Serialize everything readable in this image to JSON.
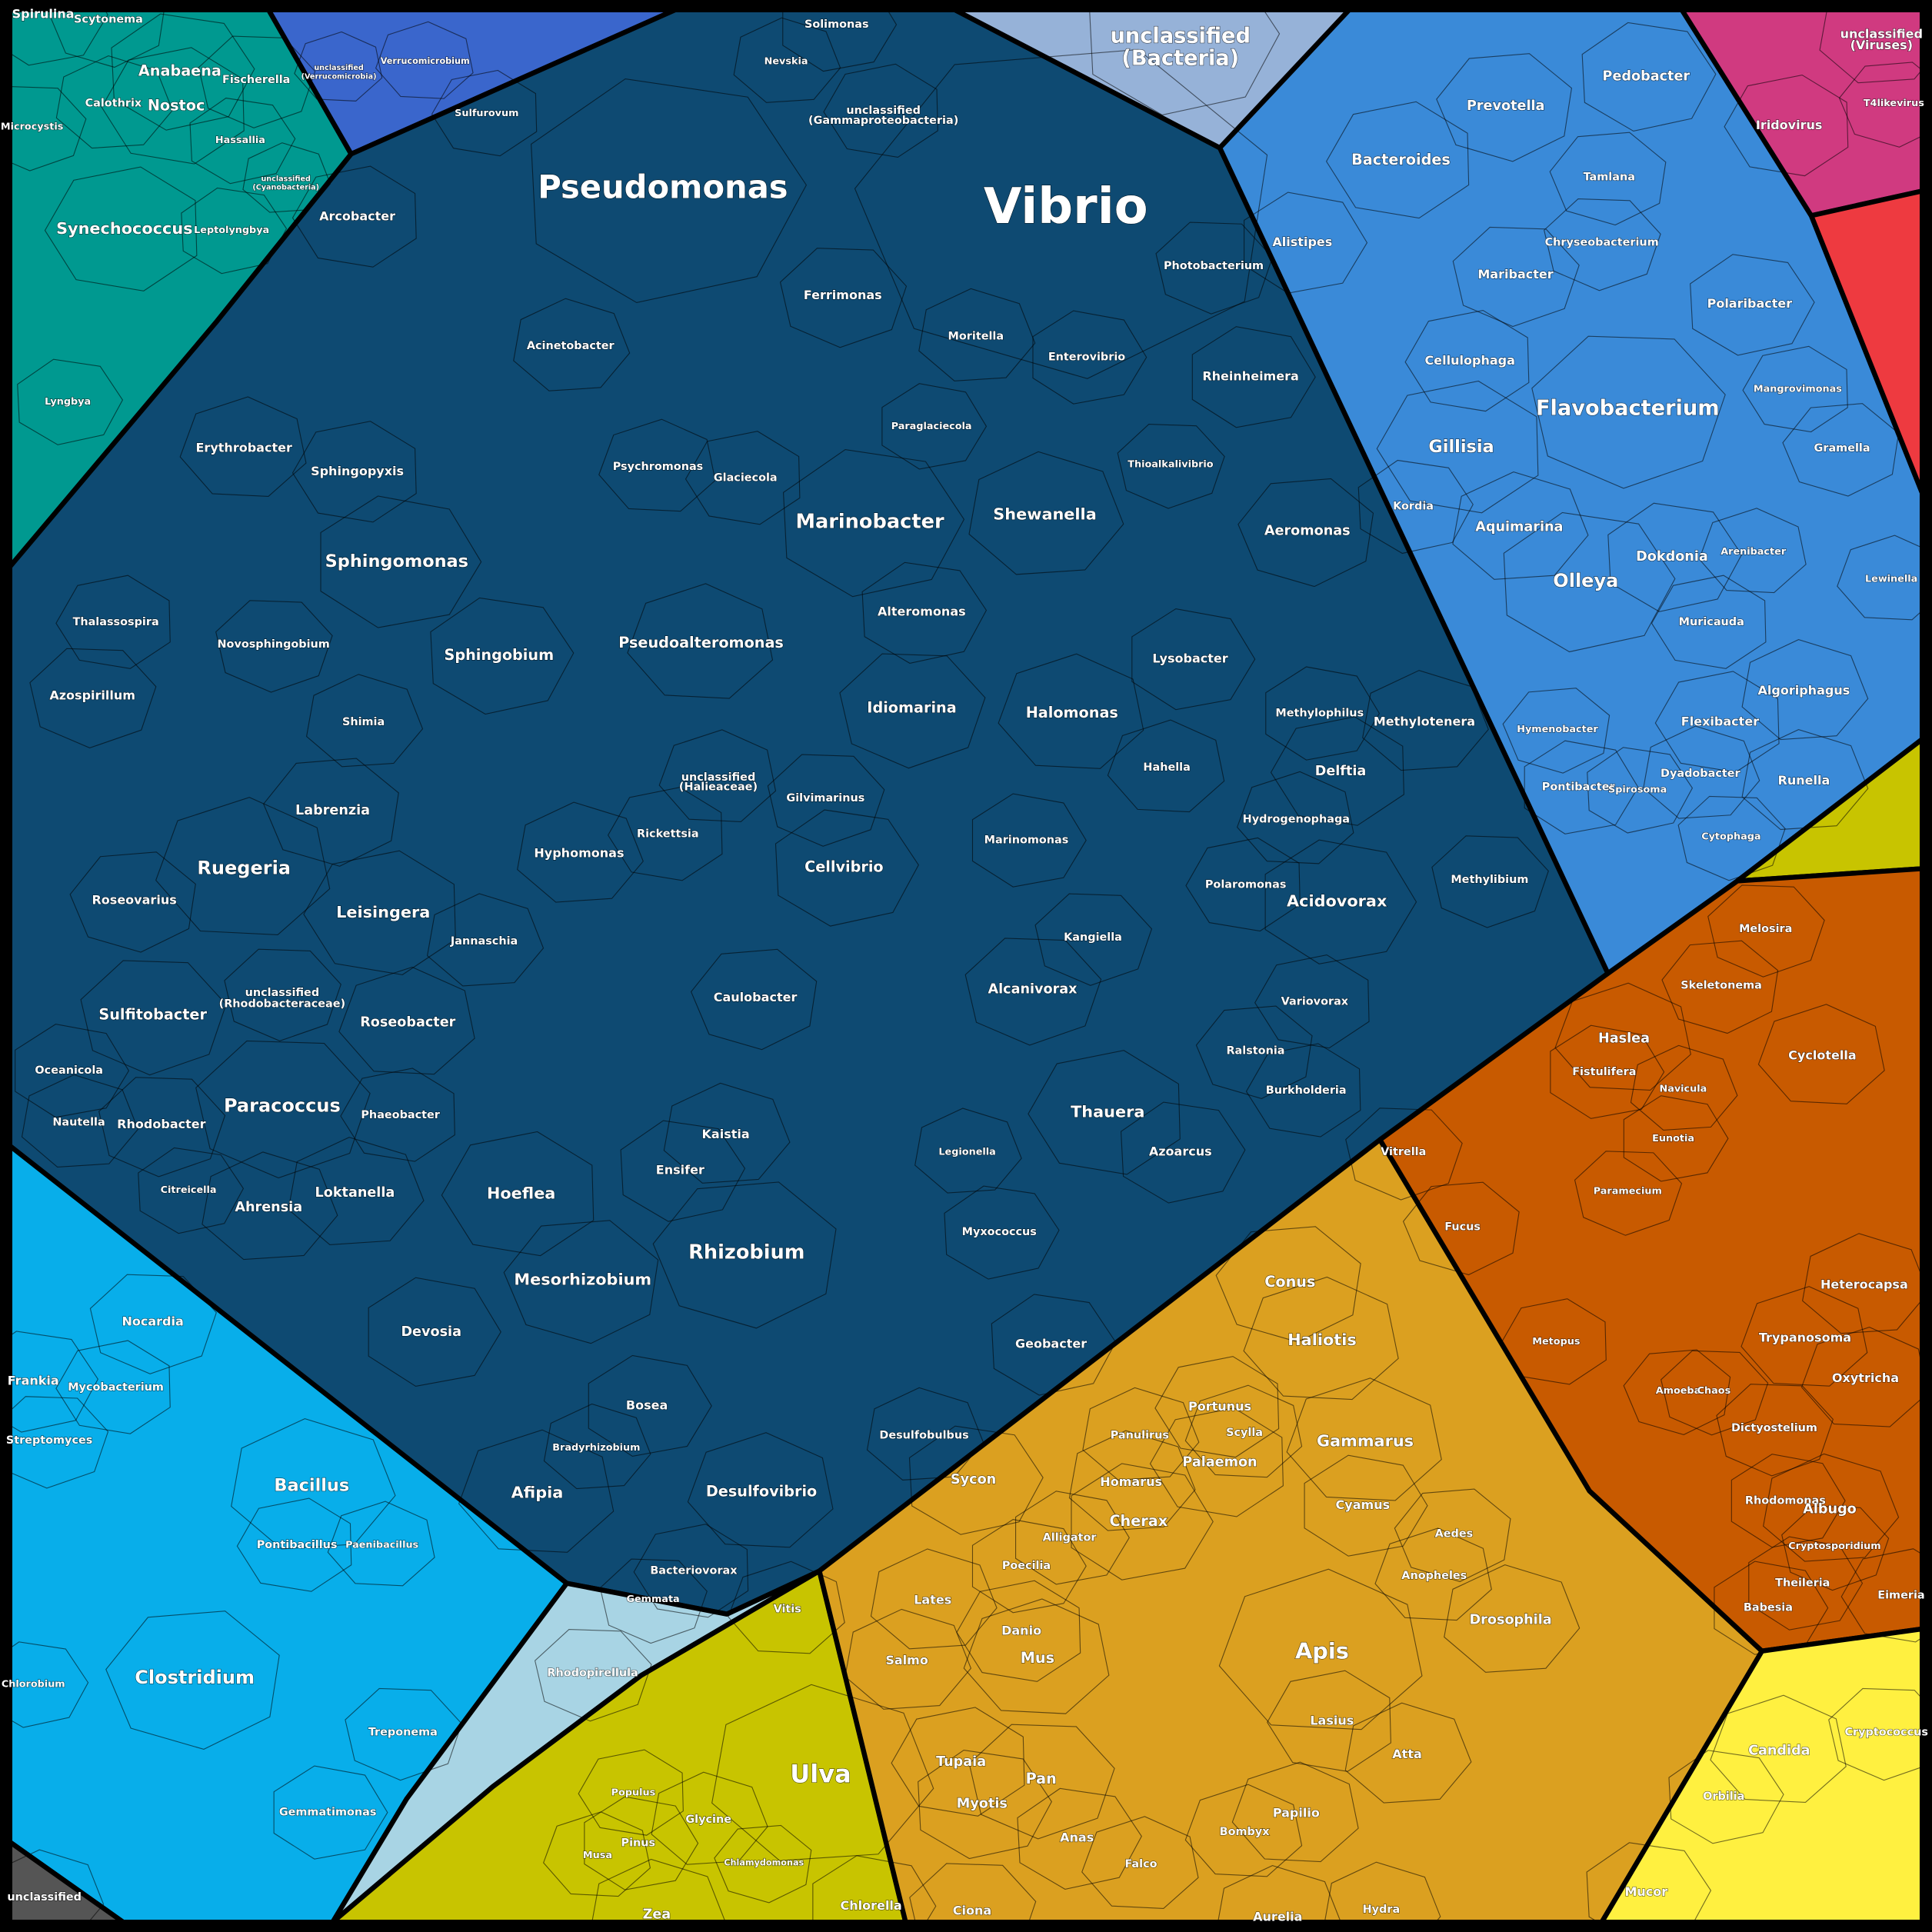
{
  "groups": {
    "cyanobacteria": "#009990",
    "verrucomicrobia": "#3a66cc",
    "proteobacteria": "#0e4a72",
    "unclassified_bacteria": "#96b2d8",
    "bacteroidetes": "#3a8ad8",
    "viruses": "#d03a80",
    "viruses_red": "#ee3a40",
    "firmicutes_actinobacteria": "#08aeea",
    "planctomycetes": "#a8d4e4",
    "viridiplantae": "#c8c400",
    "metazoa": "#dba020",
    "protists": "#c85a00",
    "fungi": "#fff040",
    "unclassified": "#555555"
  },
  "labels": {
    "spirulina": "Spirulina",
    "scytonema": "Scytonema",
    "anabaena": "Anabaena",
    "nostoc": "Nostoc",
    "calothrix": "Calothrix",
    "fischerella": "Fischerella",
    "microcystis": "Microcystis",
    "synechococcus": "Synechococcus",
    "leptolyngbya": "Leptolyngbya",
    "lyngbya": "Lyngbya",
    "hassallia": "Hassallia",
    "unc_cyano_1": "unclassified",
    "unc_cyano_2": "(Cyanobacteria)",
    "verrucomicrobium": "Verrucomicrobium",
    "unc_verru_1": "unclassified",
    "unc_verru_2": "(Verrucomicrobia)",
    "pseudomonas": "Pseudomonas",
    "vibrio": "Vibrio",
    "arcobacter": "Arcobacter",
    "solimonas": "Solimonas",
    "nevskia": "Nevskia",
    "sulfurovum": "Sulfurovum",
    "ferrimonas": "Ferrimonas",
    "photobacterium": "Photobacterium",
    "acinetobacter": "Acinetobacter",
    "moritella": "Moritella",
    "enterovibrio": "Enterovibrio",
    "rheinheimera": "Rheinheimera",
    "erythrobacter": "Erythrobacter",
    "sphingopyxis": "Sphingopyxis",
    "sphingomonas": "Sphingomonas",
    "marinobacter": "Marinobacter",
    "shewanella": "Shewanella",
    "aeromonas": "Aeromonas",
    "psychromonas": "Psychromonas",
    "glaciecola": "Glaciecola",
    "paraglaciecola": "Paraglaciecola",
    "thioalkalivibrio": "Thioalkalivibrio",
    "thalassospira": "Thalassospira",
    "novosphingobium": "Novosphingobium",
    "sphingobium": "Sphingobium",
    "pseudoalteromonas": "Pseudoalteromonas",
    "alteromonas": "Alteromonas",
    "lysobacter": "Lysobacter",
    "azospirillum": "Azospirillum",
    "idiomarina": "Idiomarina",
    "halomonas": "Halomonas",
    "methylophilus": "Methylophilus",
    "methylotenera": "Methylotenera",
    "shimia": "Shimia",
    "labrenzia": "Labrenzia",
    "delftia": "Delftia",
    "hahella": "Hahella",
    "gilvimarinus": "Gilvimarinus",
    "hydrogenophaga": "Hydrogenophaga",
    "ruegeria": "Ruegeria",
    "hyphomonas": "Hyphomonas",
    "cellvibrio": "Cellvibrio",
    "marinomonas": "Marinomonas",
    "rickettsia": "Rickettsia",
    "roseovarius": "Roseovarius",
    "leisingera": "Leisingera",
    "acidovorax": "Acidovorax",
    "polaromonas": "Polaromonas",
    "methylibium": "Methylibium",
    "jannaschia": "Jannaschia",
    "kangiella": "Kangiella",
    "sulfitobacter": "Sulfitobacter",
    "unc_rhodo_1": "unclassified",
    "unc_rhodo_2": "(Rhodobacteraceae)",
    "roseobacter": "Roseobacter",
    "caulobacter": "Caulobacter",
    "alcanivorax": "Alcanivorax",
    "variovorax": "Variovorax",
    "ralstonia": "Ralstonia",
    "oceanicola": "Oceanicola",
    "paracoccus": "Paracoccus",
    "phaeobacter": "Phaeobacter",
    "thauera": "Thauera",
    "burkholderia": "Burkholderia",
    "rhodobacter": "Rhodobacter",
    "nautella": "Nautella",
    "kaistia": "Kaistia",
    "azoarcus": "Azoarcus",
    "ensifer": "Ensifer",
    "hoeflea": "Hoeflea",
    "loktanella": "Loktanella",
    "ahrensia": "Ahrensia",
    "rhizobium": "Rhizobium",
    "mesorhizobium": "Mesorhizobium",
    "myxococcus": "Myxococcus",
    "devosia": "Devosia",
    "geobacter": "Geobacter",
    "bosea": "Bosea",
    "afipia": "Afipia",
    "desulfovibrio": "Desulfovibrio",
    "desulfobulbus": "Desulfobulbus",
    "bradyrhizobium": "Bradyrhizobium",
    "bacteriovorax": "Bacteriovorax",
    "legionella": "Legionella",
    "citreicella": "Citreicella",
    "unc_gamma_1": "unclassified",
    "unc_gamma_2": "(Gammaproteobacteria)",
    "unc_halie_1": "unclassified",
    "unc_halie_2": "(Halieaceae)",
    "unc_bact_1": "unclassified",
    "unc_bact_2": "(Bacteria)",
    "pedobacter": "Pedobacter",
    "prevotella": "Prevotella",
    "bacteroides": "Bacteroides",
    "tamlana": "Tamlana",
    "alistipes": "Alistipes",
    "chryseobacterium": "Chryseobacterium",
    "maribacter": "Maribacter",
    "polaribacter": "Polaribacter",
    "cellulophaga": "Cellulophaga",
    "flavobacterium": "Flavobacterium",
    "gillisia": "Gillisia",
    "mangrovimonas": "Mangrovimonas",
    "gramella": "Gramella",
    "aquimarina": "Aquimarina",
    "kordia": "Kordia",
    "olleya": "Olleya",
    "dokdonia": "Dokdonia",
    "arenibacter": "Arenibacter",
    "muricauda": "Muricauda",
    "algoriphagus": "Algoriphagus",
    "flexibacter": "Flexibacter",
    "dyadobacter": "Dyadobacter",
    "runella": "Runella",
    "hymenobacter": "Hymenobacter",
    "pontibacter": "Pontibacter",
    "spirosoma": "Spirosoma",
    "cytophaga": "Cytophaga",
    "lewinella": "Lewinella",
    "unc_vir_1": "unclassified",
    "unc_vir_2": "(Viruses)",
    "iridovirus": "Iridovirus",
    "t4likevirus": "T4likevirus",
    "nocardia": "Nocardia",
    "frankia": "Frankia",
    "mycobacterium": "Mycobacterium",
    "streptomyces": "Streptomyces",
    "bacillus": "Bacillus",
    "pontibacillus": "Pontibacillus",
    "paenibacillus": "Paenibacillus",
    "clostridium": "Clostridium",
    "treponema": "Treponema",
    "gemmatimonas": "Gemmatimonas",
    "chlorobium": "Chlorobium",
    "rhodopirellula": "Rhodopirellula",
    "gemmata": "Gemmata",
    "unclassified": "unclassified",
    "ulva": "Ulva",
    "vitis": "Vitis",
    "populus": "Populus",
    "glycine": "Glycine",
    "pinus": "Pinus",
    "musa": "Musa",
    "zea": "Zea",
    "chlorella": "Chlorella",
    "chlamydomonas": "Chlamydomonas",
    "conus": "Conus",
    "haliotis": "Haliotis",
    "gammarus": "Gammarus",
    "cyamus": "Cyamus",
    "apis": "Apis",
    "drosophila": "Drosophila",
    "aedes": "Aedes",
    "anopheles": "Anopheles",
    "atta": "Atta",
    "lasius": "Lasius",
    "papilio": "Papilio",
    "bombyx": "Bombyx",
    "palaemon": "Palaemon",
    "portunus": "Portunus",
    "cherax": "Cherax",
    "homarus": "Homarus",
    "panulirus": "Panulirus",
    "scylla": "Scylla",
    "sycon": "Sycon",
    "alligator": "Alligator",
    "poecilia": "Poecilia",
    "danio": "Danio",
    "mus": "Mus",
    "salmo": "Salmo",
    "tupaia": "Tupaia",
    "pan": "Pan",
    "myotis": "Myotis",
    "anas": "Anas",
    "falco": "Falco",
    "ciona": "Ciona",
    "aurelia": "Aurelia",
    "hydra": "Hydra",
    "lates": "Lates",
    "melosira": "Melosira",
    "haslea": "Haslea",
    "skeletonema": "Skeletonema",
    "cyclotella": "Cyclotella",
    "fistulifera": "Fistulifera",
    "navicula": "Navicula",
    "eunotia": "Eunotia",
    "vitrella": "Vitrella",
    "fucus": "Fucus",
    "paramecium": "Paramecium",
    "heterocapsa": "Heterocapsa",
    "trypanosoma": "Trypanosoma",
    "oxytricha": "Oxytricha",
    "amoeba": "Amoeba",
    "chaos": "Chaos",
    "dictyostelium": "Dictyostelium",
    "rhodomonas": "Rhodomonas",
    "albugo": "Albugo",
    "cryptosporidium": "Cryptosporidium",
    "theileria": "Theileria",
    "babesia": "Babesia",
    "eimeria": "Eimeria",
    "metopus": "Metopus",
    "candida": "Candida",
    "cryptococcus": "Cryptococcus",
    "orbilia": "Orbilia",
    "mucor": "Mucor"
  }
}
